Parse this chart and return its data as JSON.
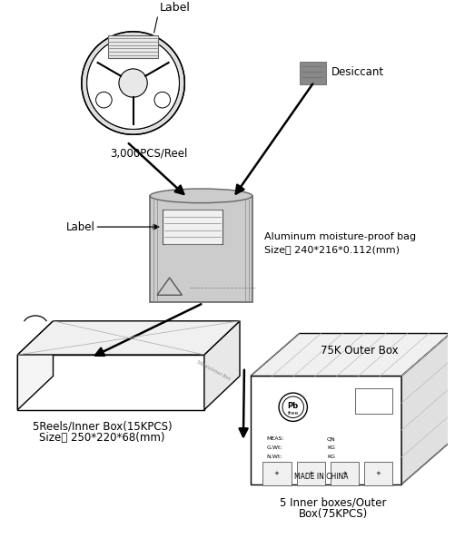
{
  "background_color": "#ffffff",
  "text_color": "#000000",
  "line_color": "#000000",
  "reel_label": "Label",
  "reel_caption": "3,000PCS/Reel",
  "desiccant_label": "Desiccant",
  "bag_label": "Label",
  "bag_caption_line1": "Aluminum moisture-proof bag",
  "bag_caption_line2": "Size： 240*216*0.112(mm)",
  "inner_box_caption_line1": "5Reels/Inner Box(15KPCS)",
  "inner_box_caption_line2": "Size： 250*220*68(mm)",
  "outer_box_top_label": "75K Outer Box",
  "outer_box_caption_line1": "5 Inner boxes/Outer",
  "outer_box_caption_line2": "Box(75KPCS)",
  "made_in_china": "MADE IN CHINA",
  "figsize": [
    5.02,
    5.93
  ],
  "dpi": 100
}
